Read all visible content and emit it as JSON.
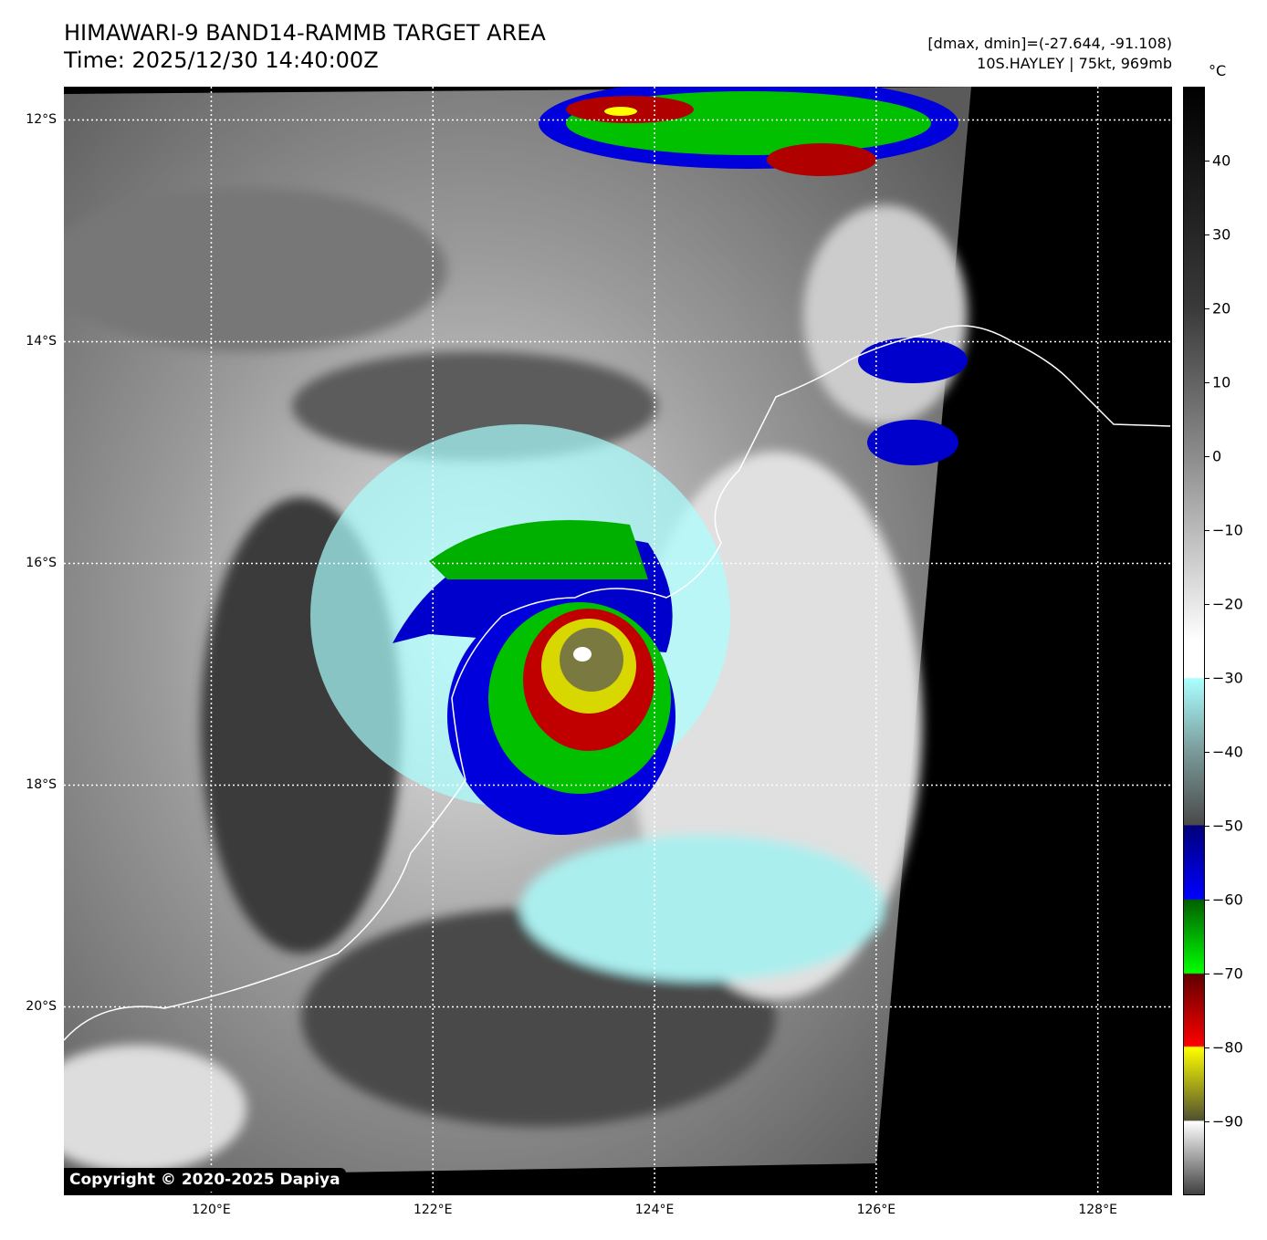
{
  "header": {
    "title": "HIMAWARI-9 BAND14-RAMMB TARGET AREA",
    "time": "Time: 2025/12/30 14:40:00Z",
    "dmax_dmin": "[dmax, dmin]=(-27.644, -91.108)",
    "storm": "10S.HAYLEY | 75kt, 969mb"
  },
  "colorbar": {
    "unit": "°C",
    "range": [
      -100,
      50
    ],
    "ticks": [
      "40",
      "30",
      "20",
      "10",
      "0",
      "−10",
      "−20",
      "−30",
      "−40",
      "−50",
      "−60",
      "−70",
      "−80",
      "−90"
    ],
    "tick_values": [
      40,
      30,
      20,
      10,
      0,
      -10,
      -20,
      -30,
      -40,
      -50,
      -60,
      -70,
      -80,
      -90
    ]
  },
  "map": {
    "lon_range": [
      118.67,
      128.67
    ],
    "lat_range": [
      -21.7,
      -11.7
    ],
    "lat_labels": [
      "12°S",
      "14°S",
      "16°S",
      "18°S",
      "20°S"
    ],
    "lat_values": [
      -12,
      -14,
      -16,
      -18,
      -20
    ],
    "lon_labels": [
      "120°E",
      "122°E",
      "124°E",
      "126°E",
      "128°E"
    ],
    "lon_values": [
      120,
      122,
      124,
      126,
      128
    ],
    "storm_center": {
      "lon": 123.4,
      "lat": -16.85
    }
  },
  "copyright": "Copyright © 2020-2025 Dapiya"
}
